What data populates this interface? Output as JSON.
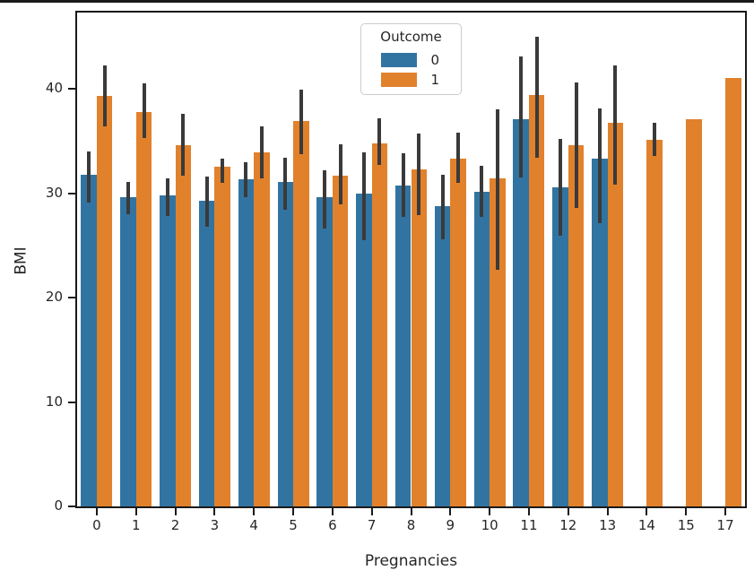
{
  "window": {
    "top_border_color": "#1a1a1a"
  },
  "chart_data": {
    "type": "bar",
    "title": "",
    "xlabel": "Pregnancies",
    "ylabel": "BMI",
    "categories": [
      "0",
      "1",
      "2",
      "3",
      "4",
      "5",
      "6",
      "7",
      "8",
      "9",
      "10",
      "11",
      "12",
      "13",
      "14",
      "15",
      "17"
    ],
    "yticks": [
      0,
      10,
      20,
      30,
      40
    ],
    "ylim": [
      0,
      47.3
    ],
    "grid": false,
    "bar_group_width": 0.8,
    "error_bar_color": "#3a3a3a",
    "legend": {
      "title": "Outcome",
      "position": "upper center"
    },
    "series": [
      {
        "name": "0",
        "color": "#3274a1",
        "values": [
          31.8,
          29.6,
          29.8,
          29.3,
          31.3,
          31.1,
          29.6,
          30.0,
          30.7,
          28.8,
          30.1,
          37.1,
          30.6,
          33.3,
          null,
          null,
          null
        ],
        "errors": [
          [
            29.1,
            34.0
          ],
          [
            28.0,
            31.1
          ],
          [
            27.8,
            31.4
          ],
          [
            26.8,
            31.6
          ],
          [
            29.6,
            33.0
          ],
          [
            28.4,
            33.4
          ],
          [
            26.6,
            32.2
          ],
          [
            25.5,
            33.9
          ],
          [
            27.7,
            33.8
          ],
          [
            25.6,
            31.8
          ],
          [
            27.7,
            32.6
          ],
          [
            31.5,
            43.1
          ],
          [
            25.9,
            35.2
          ],
          [
            27.1,
            38.1
          ],
          null,
          null,
          null
        ]
      },
      {
        "name": "1",
        "color": "#e1812c",
        "values": [
          39.3,
          37.8,
          34.6,
          32.5,
          33.9,
          36.9,
          31.7,
          34.8,
          32.3,
          33.3,
          31.4,
          39.4,
          34.6,
          36.7,
          35.1,
          37.1,
          41.0
        ],
        "errors": [
          [
            36.4,
            42.2
          ],
          [
            35.3,
            40.5
          ],
          [
            31.7,
            37.6
          ],
          [
            31.0,
            33.3
          ],
          [
            31.4,
            36.4
          ],
          [
            33.7,
            39.9
          ],
          [
            28.9,
            34.7
          ],
          [
            32.7,
            37.2
          ],
          [
            27.9,
            35.7
          ],
          [
            31.0,
            35.8
          ],
          [
            22.7,
            38.0
          ],
          [
            33.4,
            45.0
          ],
          [
            28.6,
            40.6
          ],
          [
            30.8,
            42.2
          ],
          [
            33.6,
            36.7
          ],
          null,
          null
        ]
      }
    ]
  }
}
